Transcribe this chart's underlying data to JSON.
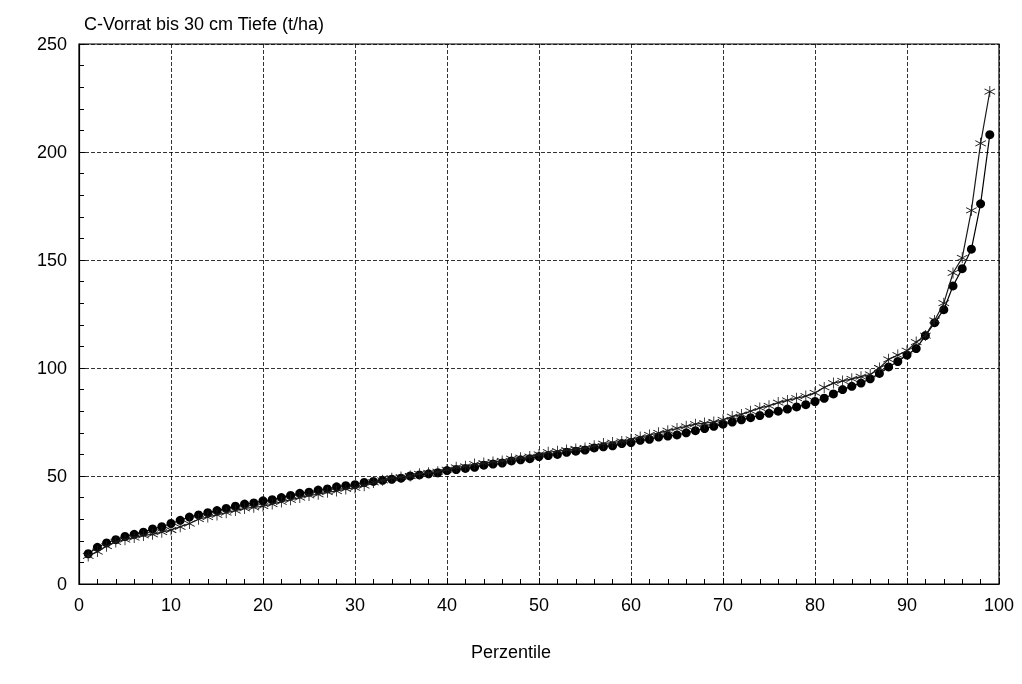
{
  "chart_data": {
    "type": "line",
    "ylabel": "C-Vorrat bis 30 cm Tiefe (t/ha)",
    "xlabel": "Perzentile",
    "x": [
      1,
      2,
      3,
      4,
      5,
      6,
      7,
      8,
      9,
      10,
      11,
      12,
      13,
      14,
      15,
      16,
      17,
      18,
      19,
      20,
      21,
      22,
      23,
      24,
      25,
      26,
      27,
      28,
      29,
      30,
      31,
      32,
      33,
      34,
      35,
      36,
      37,
      38,
      39,
      40,
      41,
      42,
      43,
      44,
      45,
      46,
      47,
      48,
      49,
      50,
      51,
      52,
      53,
      54,
      55,
      56,
      57,
      58,
      59,
      60,
      61,
      62,
      63,
      64,
      65,
      66,
      67,
      68,
      69,
      70,
      71,
      72,
      73,
      74,
      75,
      76,
      77,
      78,
      79,
      80,
      81,
      82,
      83,
      84,
      85,
      86,
      87,
      88,
      89,
      90,
      91,
      92,
      93,
      94,
      95,
      96,
      97,
      98,
      99
    ],
    "series": [
      {
        "color": "#000000",
        "marker": "circle",
        "values": [
          14,
          17,
          19,
          20.5,
          22,
          23,
          24,
          25.5,
          26.5,
          28,
          29.5,
          31,
          32,
          33,
          34,
          35,
          36,
          37,
          37.5,
          38.5,
          39,
          40,
          41,
          42,
          42.5,
          43.5,
          44,
          45,
          45.5,
          46,
          47,
          47.5,
          48,
          48.5,
          49,
          50,
          50.5,
          51,
          51.5,
          52.5,
          53,
          53.5,
          54,
          55,
          55.5,
          56,
          57,
          57.5,
          58,
          59,
          59.5,
          60,
          61,
          61.5,
          62,
          63,
          63.5,
          64,
          65,
          65.5,
          66.5,
          67,
          68,
          68.5,
          69,
          70,
          71,
          72,
          73,
          74,
          75,
          76,
          77,
          78,
          79,
          80,
          81,
          82,
          83,
          84.5,
          86,
          88,
          90,
          91.5,
          93,
          95,
          97.5,
          100.5,
          103,
          106,
          109,
          115,
          121,
          127,
          138,
          146,
          155,
          176,
          208
        ]
      },
      {
        "color": "#1a1a1a",
        "marker": "cross",
        "values": [
          13,
          15,
          17.5,
          19.5,
          20.5,
          21.5,
          22.5,
          23,
          24,
          25,
          26.5,
          28,
          30,
          31,
          32,
          33,
          34,
          35,
          35.5,
          36,
          37,
          38,
          39,
          40,
          41,
          41.5,
          42.5,
          43,
          44,
          44.5,
          45.5,
          47,
          48,
          49,
          49.5,
          50,
          51,
          51.5,
          52,
          53,
          54,
          54.5,
          55.5,
          56,
          56.5,
          57,
          58,
          58.5,
          59,
          60,
          61,
          61.5,
          62,
          62.5,
          63,
          64,
          65,
          65.5,
          66,
          67,
          68,
          69,
          70,
          71,
          72,
          73,
          74,
          74.5,
          75,
          76,
          77.5,
          78.5,
          80,
          81.5,
          82.5,
          84,
          85,
          86,
          87,
          88.5,
          91,
          93,
          94,
          95,
          96,
          97,
          100,
          104,
          106,
          108,
          112,
          115,
          122,
          130,
          144,
          151,
          173,
          204,
          228
        ]
      }
    ],
    "xlim": [
      0,
      100
    ],
    "xticks": [
      0,
      10,
      20,
      30,
      40,
      50,
      60,
      70,
      80,
      90,
      100
    ],
    "ylim": [
      0,
      250
    ],
    "yticks": [
      0,
      50,
      100,
      150,
      200,
      250
    ],
    "grid": true,
    "line_style": "solid",
    "legend": false
  }
}
